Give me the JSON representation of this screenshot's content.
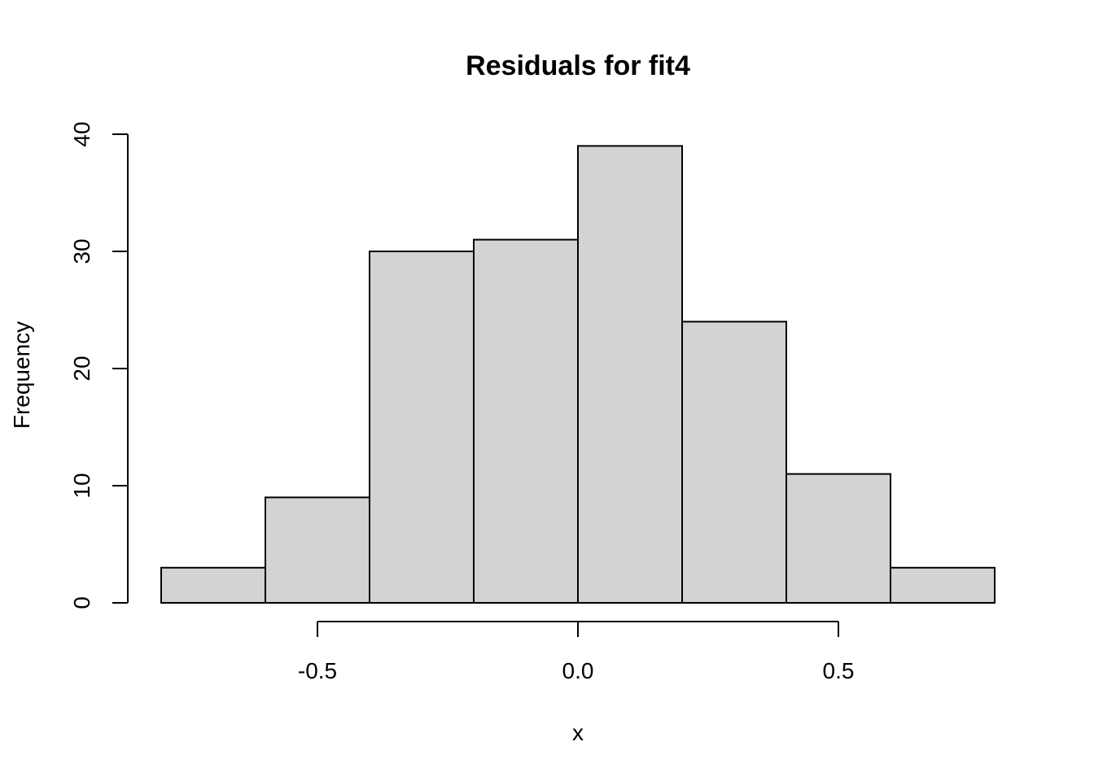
{
  "chart_data": {
    "type": "bar",
    "title": "Residuals for fit4",
    "xlabel": "x",
    "ylabel": "Frequency",
    "bins": [
      {
        "x0": -0.8,
        "x1": -0.6,
        "count": 3
      },
      {
        "x0": -0.6,
        "x1": -0.4,
        "count": 9
      },
      {
        "x0": -0.4,
        "x1": -0.2,
        "count": 30
      },
      {
        "x0": -0.2,
        "x1": 0.0,
        "count": 31
      },
      {
        "x0": 0.0,
        "x1": 0.2,
        "count": 39
      },
      {
        "x0": 0.2,
        "x1": 0.4,
        "count": 24
      },
      {
        "x0": 0.4,
        "x1": 0.6,
        "count": 11
      },
      {
        "x0": 0.6,
        "x1": 0.8,
        "count": 3
      }
    ],
    "xticks": [
      {
        "value": -0.5,
        "label": "-0.5"
      },
      {
        "value": 0.0,
        "label": "0.0"
      },
      {
        "value": 0.5,
        "label": "0.5"
      }
    ],
    "yticks": [
      {
        "value": 0,
        "label": "0"
      },
      {
        "value": 10,
        "label": "10"
      },
      {
        "value": 20,
        "label": "20"
      },
      {
        "value": 30,
        "label": "30"
      },
      {
        "value": 40,
        "label": "40"
      }
    ],
    "xlim": [
      -0.8,
      0.8
    ],
    "ylim": [
      0,
      40
    ],
    "grid": false,
    "bar_color": "#d3d3d3",
    "edge_color": "#000000"
  }
}
